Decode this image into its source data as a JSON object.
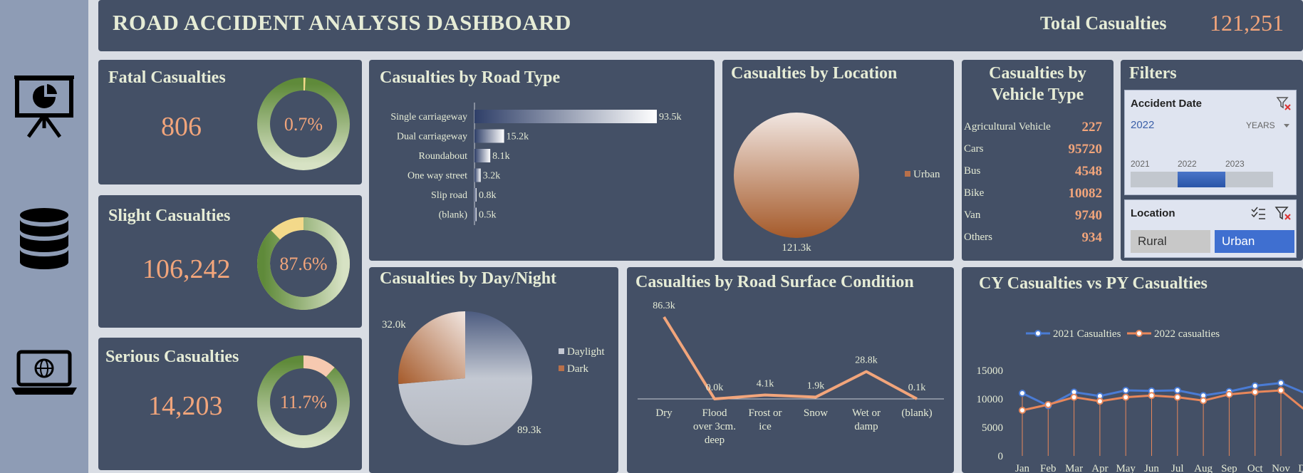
{
  "header": {
    "title": "ROAD ACCIDENT ANALYSIS DASHBOARD",
    "total_label": "Total Casualties",
    "total_value": "121,251"
  },
  "sidebar": {
    "icons": [
      "presentation-chart-icon",
      "database-icon",
      "laptop-globe-icon"
    ]
  },
  "kpis": {
    "fatal": {
      "title": "Fatal Casualties",
      "value": "806",
      "pct_label": "0.7%",
      "pct": 0.7
    },
    "slight": {
      "title": "Slight Casualties",
      "value": "106,242",
      "pct_label": "87.6%",
      "pct": 87.6
    },
    "serious": {
      "title": "Serious Casualties",
      "value": "14,203",
      "pct_label": "11.7%",
      "pct": 11.7
    }
  },
  "road_type": {
    "title": "Casualties by Road Type",
    "chart_data": {
      "type": "bar",
      "categories": [
        "Single carriageway",
        "Dual carriageway",
        "Roundabout",
        "One way street",
        "Slip road",
        "(blank)"
      ],
      "values": [
        93.5,
        15.2,
        8.1,
        3.2,
        0.8,
        0.5
      ],
      "labels": [
        "93.5k",
        "15.2k",
        "8.1k",
        "3.2k",
        "0.8k",
        "0.5k"
      ]
    }
  },
  "location": {
    "title": "Casualties by Location",
    "chart_data": {
      "type": "pie",
      "categories": [
        "Urban"
      ],
      "values": [
        121.3
      ],
      "labels": [
        "121.3k"
      ],
      "legend": "right"
    }
  },
  "vehicle": {
    "title_line1": "Casualties by",
    "title_line2": "Vehicle Type",
    "rows": [
      {
        "label": "Agricultural Vehicle",
        "value": "227"
      },
      {
        "label": "Cars",
        "value": "95720"
      },
      {
        "label": "Bus",
        "value": "4548"
      },
      {
        "label": "Bike",
        "value": "10082"
      },
      {
        "label": "Van",
        "value": "9740"
      },
      {
        "label": "Others",
        "value": "934"
      }
    ]
  },
  "filters": {
    "title": "Filters",
    "date": {
      "title": "Accident Date",
      "selected": "2022",
      "period": "YEARS",
      "years": [
        "2021",
        "2022",
        "2023"
      ],
      "active_year": "2022"
    },
    "location": {
      "title": "Location",
      "options": [
        "Rural",
        "Urban"
      ],
      "active": "Urban"
    }
  },
  "day_night": {
    "title": "Casualties by Day/Night",
    "chart_data": {
      "type": "pie",
      "categories": [
        "Daylight",
        "Dark"
      ],
      "values": [
        89.3,
        32.0
      ],
      "labels": [
        "89.3k",
        "32.0k"
      ],
      "legend": "right"
    }
  },
  "surface": {
    "title": "Casualties by Road Surface Condition",
    "chart_data": {
      "type": "line",
      "categories": [
        "Dry",
        "Flood over 3cm. deep",
        "Frost or ice",
        "Snow",
        "Wet or damp",
        "(blank)"
      ],
      "category_lines": [
        [
          "Dry"
        ],
        [
          "Flood",
          "over 3cm.",
          "deep"
        ],
        [
          "Frost or",
          "ice"
        ],
        [
          "Snow"
        ],
        [
          "Wet or",
          "damp"
        ],
        [
          "(blank)"
        ]
      ],
      "values": [
        86.3,
        0.0,
        4.1,
        1.9,
        28.8,
        0.1
      ],
      "labels": [
        "86.3k",
        "0.0k",
        "4.1k",
        "1.9k",
        "28.8k",
        "0.1k"
      ]
    }
  },
  "cy_py": {
    "title": "CY Casualties vs PY Casualties",
    "chart_data": {
      "type": "line",
      "categories": [
        "Jan",
        "Feb",
        "Mar",
        "Apr",
        "May",
        "Jun",
        "Jul",
        "Aug",
        "Sep",
        "Oct",
        "Nov",
        "Dec"
      ],
      "ylim": [
        0,
        15000
      ],
      "yticks": [
        "0",
        "5000",
        "10000",
        "15000"
      ],
      "legend": "top",
      "series": [
        {
          "name": "2021 Casualties",
          "color": "#4a7bd4",
          "values": [
            11000,
            8800,
            11200,
            10500,
            11500,
            11400,
            11500,
            10600,
            11300,
            12300,
            12800,
            10900
          ]
        },
        {
          "name": "2022 casualties",
          "color": "#e8875a",
          "values": [
            8000,
            9000,
            10300,
            9600,
            10300,
            10600,
            10300,
            9700,
            10800,
            11200,
            11500,
            7800
          ]
        }
      ]
    }
  },
  "colors": {
    "panel": "#445066",
    "accent": "#f2a57b",
    "title": "#e6ecd6",
    "green": "#5f8a3a"
  }
}
